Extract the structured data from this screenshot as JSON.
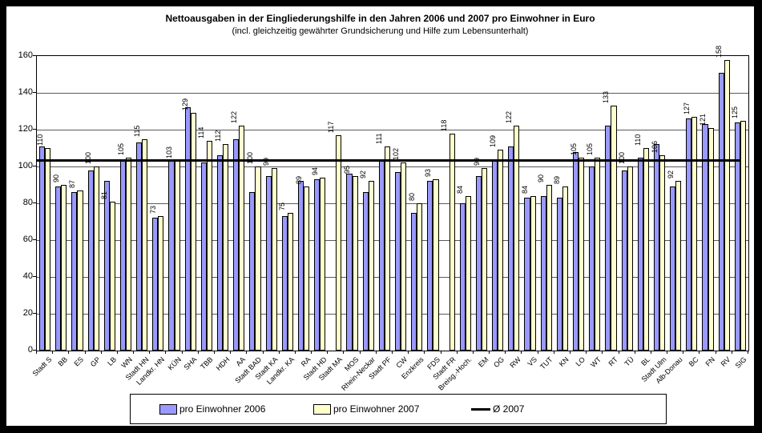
{
  "title": "Nettoausgaben in der Eingliederungshilfe in den Jahren 2006 und 2007 pro Einwohner in Euro",
  "subtitle": "(incl. gleichzeitig gewährter Grundsicherung und Hilfe zum Lebensunterhalt)",
  "legend": {
    "series2006_label": "pro Einwohner 2006",
    "series2007_label": "pro Einwohner 2007",
    "avg_label": "Ø 2007"
  },
  "colors": {
    "bar2006": "#9999FF",
    "bar2007": "#FFFFCC",
    "avg_line": "#000000",
    "frame": "#000000",
    "background": "#FFFFFF"
  },
  "chart_data": {
    "type": "bar",
    "title": "Nettoausgaben in der Eingliederungshilfe in den Jahren 2006 und 2007 pro Einwohner in Euro",
    "subtitle": "(incl. gleichzeitig gewährter Grundsicherung und Hilfe zum Lebensunterhalt)",
    "categories": [
      "Stadt S",
      "BB",
      "ES",
      "GP",
      "LB",
      "WN",
      "Stadt HN",
      "Landkr. HN",
      "KÜN",
      "SHA",
      "TBB",
      "HDH",
      "AA",
      "Stadt BAD",
      "Stadt KA",
      "Landkr. KA",
      "RA",
      "Stadt HD",
      "Stadt MA",
      "MOS",
      "Rhein-Neckar",
      "Stadt PF",
      "CW",
      "Enzkreis",
      "FDS",
      "Stadt FR",
      "Breisg.-Hoch.",
      "EM",
      "OG",
      "RW",
      "VS",
      "TUT",
      "KN",
      "LO",
      "WT",
      "RT",
      "TÜ",
      "BL",
      "Stadt Ulm",
      "Alb-Donau",
      "BC",
      "FN",
      "RV",
      "SIG"
    ],
    "series": [
      {
        "name": "pro Einwohner 2006",
        "values": [
          111,
          89,
          86,
          98,
          92,
          104,
          113,
          72,
          103,
          132,
          102,
          106,
          115,
          86,
          95,
          73,
          92,
          93,
          null,
          96,
          86,
          103,
          97,
          75,
          92,
          null,
          80,
          95,
          104,
          111,
          83,
          84,
          83,
          108,
          100,
          122,
          98,
          105,
          112,
          89,
          126,
          123,
          151,
          124
        ]
      },
      {
        "name": "pro Einwohner 2007",
        "values": [
          110,
          90,
          87,
          100,
          81,
          105,
          115,
          73,
          103,
          129,
          114,
          112,
          122,
          100,
          99,
          75,
          89,
          94,
          117,
          95,
          92,
          111,
          102,
          80,
          93,
          118,
          84,
          99,
          109,
          122,
          84,
          90,
          89,
          105,
          105,
          133,
          100,
          110,
          106,
          92,
          127,
          121,
          158,
          125
        ],
        "data_labels": true
      }
    ],
    "avg_line": {
      "label": "Ø 2007",
      "value": 103
    },
    "ylim": [
      0,
      160
    ],
    "yticks": [
      0,
      20,
      40,
      60,
      80,
      100,
      120,
      140,
      160
    ],
    "grid": true,
    "legend_position": "bottom",
    "notes": "2007 values shown as 90°-rotated data labels above yellow bars; Stadt MA and Stadt FR have no 2006 bar"
  }
}
